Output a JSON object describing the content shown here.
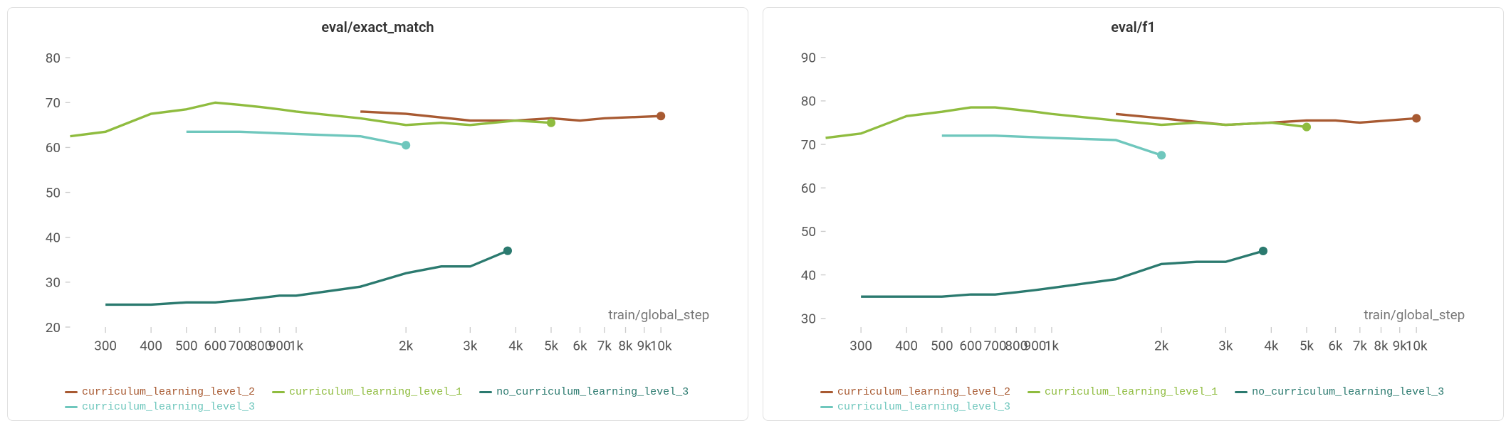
{
  "charts": [
    {
      "title": "eval/exact_match",
      "xaxis_label": "train/global_step",
      "xscale": "log",
      "xlim": [
        240,
        14000
      ],
      "xticks": [
        300,
        400,
        500,
        600,
        700,
        800,
        900,
        1000,
        2000,
        3000,
        4000,
        5000,
        6000,
        7000,
        8000,
        9000,
        10000
      ],
      "xtick_labels": [
        "300",
        "400",
        "500",
        "600",
        "700",
        "800",
        "900",
        "1k",
        "2k",
        "3k",
        "4k",
        "5k",
        "6k",
        "7k",
        "8k",
        "9k",
        "10k"
      ],
      "ylim": [
        20,
        82
      ],
      "yticks": [
        20,
        30,
        40,
        50,
        60,
        70,
        80
      ],
      "ytick_labels": [
        "20",
        "30",
        "40",
        "50",
        "60",
        "70",
        "80"
      ],
      "grid_color": "#cccccc",
      "background_color": "#ffffff",
      "title_fontsize": 20,
      "label_fontsize": 14,
      "series": [
        {
          "name": "curriculum_learning_level_2",
          "color": "#a85a32",
          "x": [
            1500,
            2000,
            3000,
            4000,
            5000,
            6000,
            7000,
            10000
          ],
          "y": [
            68,
            67.5,
            66,
            66,
            66.5,
            66,
            66.5,
            67
          ],
          "endpoint_marker": true
        },
        {
          "name": "curriculum_learning_level_1",
          "color": "#8fbc3f",
          "x": [
            240,
            300,
            400,
            500,
            600,
            700,
            800,
            900,
            1000,
            1500,
            2000,
            2500,
            3000,
            4000,
            5000
          ],
          "y": [
            62.5,
            63.5,
            67.5,
            68.5,
            70,
            69.5,
            69,
            68.5,
            68,
            66.5,
            65,
            65.5,
            65,
            66,
            65.5
          ],
          "endpoint_marker": true
        },
        {
          "name": "no_curriculum_learning_level_3",
          "color": "#2b7a6f",
          "x": [
            300,
            400,
            500,
            600,
            700,
            800,
            900,
            1000,
            1500,
            2000,
            2500,
            3000,
            3800
          ],
          "y": [
            25,
            25,
            25.5,
            25.5,
            26,
            26.5,
            27,
            27,
            29,
            32,
            33.5,
            33.5,
            37
          ],
          "endpoint_marker": true
        },
        {
          "name": "curriculum_learning_level_3",
          "color": "#6fc7bd",
          "x": [
            500,
            700,
            1000,
            1500,
            2000
          ],
          "y": [
            63.5,
            63.5,
            63,
            62.5,
            60.5
          ],
          "endpoint_marker": true
        }
      ],
      "legend_order": [
        "curriculum_learning_level_2",
        "curriculum_learning_level_1",
        "no_curriculum_learning_level_3",
        "curriculum_learning_level_3"
      ]
    },
    {
      "title": "eval/f1",
      "xaxis_label": "train/global_step",
      "xscale": "log",
      "xlim": [
        240,
        14000
      ],
      "xticks": [
        300,
        400,
        500,
        600,
        700,
        800,
        900,
        1000,
        2000,
        3000,
        4000,
        5000,
        6000,
        7000,
        8000,
        9000,
        10000
      ],
      "xtick_labels": [
        "300",
        "400",
        "500",
        "600",
        "700",
        "800",
        "900",
        "1k",
        "2k",
        "3k",
        "4k",
        "5k",
        "6k",
        "7k",
        "8k",
        "9k",
        "10k"
      ],
      "ylim": [
        28,
        92
      ],
      "yticks": [
        30,
        40,
        50,
        60,
        70,
        80,
        90
      ],
      "ytick_labels": [
        "30",
        "40",
        "50",
        "60",
        "70",
        "80",
        "90"
      ],
      "grid_color": "#cccccc",
      "background_color": "#ffffff",
      "title_fontsize": 20,
      "label_fontsize": 14,
      "series": [
        {
          "name": "curriculum_learning_level_2",
          "color": "#a85a32",
          "x": [
            1500,
            2000,
            3000,
            4000,
            5000,
            6000,
            7000,
            10000
          ],
          "y": [
            77,
            76,
            74.5,
            75,
            75.5,
            75.5,
            75,
            76
          ],
          "endpoint_marker": true
        },
        {
          "name": "curriculum_learning_level_1",
          "color": "#8fbc3f",
          "x": [
            240,
            300,
            400,
            500,
            600,
            700,
            800,
            900,
            1000,
            1500,
            2000,
            2500,
            3000,
            4000,
            5000
          ],
          "y": [
            71.5,
            72.5,
            76.5,
            77.5,
            78.5,
            78.5,
            78,
            77.5,
            77,
            75.5,
            74.5,
            75,
            74.5,
            75,
            74
          ],
          "endpoint_marker": true
        },
        {
          "name": "no_curriculum_learning_level_3",
          "color": "#2b7a6f",
          "x": [
            300,
            400,
            500,
            600,
            700,
            800,
            900,
            1000,
            1500,
            2000,
            2500,
            3000,
            3800
          ],
          "y": [
            35,
            35,
            35,
            35.5,
            35.5,
            36,
            36.5,
            37,
            39,
            42.5,
            43,
            43,
            45.5
          ],
          "endpoint_marker": true
        },
        {
          "name": "curriculum_learning_level_3",
          "color": "#6fc7bd",
          "x": [
            500,
            700,
            1000,
            1500,
            2000
          ],
          "y": [
            72,
            72,
            71.5,
            71,
            67.5
          ],
          "endpoint_marker": true
        }
      ],
      "legend_order": [
        "curriculum_learning_level_2",
        "curriculum_learning_level_1",
        "no_curriculum_learning_level_3",
        "curriculum_learning_level_3"
      ]
    }
  ]
}
